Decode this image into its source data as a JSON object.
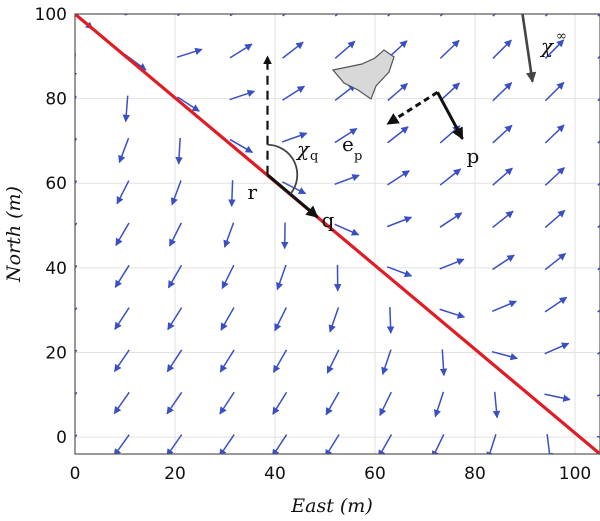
{
  "colors": {
    "vector_field": "#3b4fc4",
    "path_line": "#e01c24",
    "annotation_black": "#111111",
    "annotation_gray": "#444444",
    "aircraft_fill": "#d8d8d8"
  },
  "chart_data": {
    "type": "quiver",
    "xlabel_main": "East",
    "xlabel_unit": "m",
    "ylabel_main": "North",
    "ylabel_unit": "m",
    "xlim": [
      0,
      105
    ],
    "ylim": [
      -4,
      100
    ],
    "x_ticks": [
      0,
      20,
      40,
      60,
      80,
      100
    ],
    "y_ticks": [
      0,
      20,
      40,
      60,
      80,
      100
    ],
    "grid": true,
    "path_line": {
      "from": [
        0,
        100
      ],
      "to": [
        105,
        -4
      ]
    },
    "vector_field": {
      "x_start": 0,
      "x_step": 10.5,
      "x_count": 11,
      "y_start": 0,
      "y_step": 10,
      "y_count": 11,
      "max_approach_angle_deg": 90
    },
    "annotations": {
      "label_r": "r",
      "label_q": "q",
      "label_p": "p",
      "label_chi_q": "χ",
      "label_chi_q_sub": "q",
      "label_e_p": "e",
      "label_e_p_sub": "p",
      "label_chi_inf": "χ",
      "label_chi_inf_sup": "∞",
      "point_r": [
        38.5,
        62
      ],
      "point_q": [
        48.5,
        52
      ],
      "vector_p": {
        "from": [
          72.5,
          81.5
        ],
        "to": [
          77.5,
          70.5
        ]
      },
      "vector_e_p": {
        "from": [
          72.5,
          81.5
        ],
        "to": [
          62.5,
          74
        ]
      },
      "north_ref": {
        "from": [
          38.5,
          62
        ],
        "to": [
          38.5,
          90
        ]
      },
      "chi_inf_arrow": {
        "from": [
          89.5,
          100
        ],
        "to": [
          91.5,
          84
        ]
      }
    }
  }
}
